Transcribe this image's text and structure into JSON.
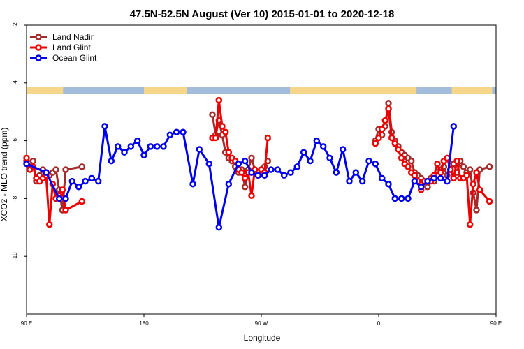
{
  "chart_data": {
    "type": "line",
    "title": "47.5N-52.5N August (Ver 10)   2015-01-01 to 2020-12-18",
    "xlabel": "Longitude",
    "ylabel": "XCO2 - MLO trend (ppm)",
    "xlim": [
      90,
      450
    ],
    "ylim": [
      -12,
      -2
    ],
    "x_ticks": [
      {
        "value": 90,
        "label": "90 E"
      },
      {
        "value": 180,
        "label": "180"
      },
      {
        "value": 270,
        "label": "90 W"
      },
      {
        "value": 360,
        "label": "0"
      },
      {
        "value": 450,
        "label": "90 E"
      },
      {
        "value": 540,
        "label": "180"
      }
    ],
    "y_ticks": [
      {
        "value": -2,
        "label": "-2"
      },
      {
        "value": -4,
        "label": "-4"
      },
      {
        "value": -6,
        "label": "-6"
      },
      {
        "value": -8,
        "label": "-8"
      },
      {
        "value": -10,
        "label": "-10"
      }
    ],
    "legend_position": "top-left",
    "land_ocean_band": {
      "y_value": -4.25,
      "land_color": "#F5D68A",
      "ocean_color": "#A3BCDB"
    },
    "series": [
      {
        "name": "Land Nadir",
        "color": "#A52A2A",
        "segments": [
          [
            [
              90,
              -6.7
            ],
            [
              92.5,
              -6.9
            ],
            [
              95,
              -6.7
            ],
            [
              97.5,
              -7.4
            ],
            [
              100,
              -7.2
            ],
            [
              102.5,
              -7.0
            ],
            [
              105,
              -7.1
            ],
            [
              107.5,
              -7.2
            ],
            [
              110,
              -7.1
            ],
            [
              112.5,
              -7.0
            ],
            [
              115,
              -7.7
            ],
            [
              117.5,
              -8.4
            ],
            [
              120,
              -7.0
            ],
            [
              132.5,
              -6.9
            ]
          ],
          [
            [
              232.5,
              -5.1
            ],
            [
              235,
              -5.8
            ],
            [
              237.5,
              -5.3
            ],
            [
              240,
              -5.8
            ],
            [
              242.5,
              -6.4
            ],
            [
              245,
              -6.6
            ],
            [
              247.5,
              -6.7
            ],
            [
              250,
              -6.9
            ],
            [
              252.5,
              -7.1
            ],
            [
              255,
              -7.0
            ],
            [
              257.5,
              -7.6
            ],
            [
              260,
              -7.0
            ],
            [
              262.5,
              -6.6
            ],
            [
              265,
              -7.0
            ],
            [
              267.5,
              -7.2
            ],
            [
              270,
              -7.0
            ],
            [
              272.5,
              -6.9
            ],
            [
              275,
              -6.7
            ]
          ],
          [
            [
              357.5,
              -6.0
            ],
            [
              360,
              -5.6
            ],
            [
              362.5,
              -5.8
            ],
            [
              365,
              -5.5
            ],
            [
              367.5,
              -4.7
            ],
            [
              370,
              -5.7
            ],
            [
              372.5,
              -6.0
            ],
            [
              375,
              -6.2
            ],
            [
              377.5,
              -6.4
            ],
            [
              380,
              -6.5
            ],
            [
              382.5,
              -6.6
            ],
            [
              385,
              -6.7
            ],
            [
              387.5,
              -7.1
            ],
            [
              390,
              -7.2
            ],
            [
              392.5,
              -7.3
            ],
            [
              395,
              -7.4
            ],
            [
              397.5,
              -7.6
            ],
            [
              400,
              -7.3
            ],
            [
              402.5,
              -7.4
            ],
            [
              405,
              -7.2
            ],
            [
              407.5,
              -7.0
            ],
            [
              410,
              -6.9
            ],
            [
              412.5,
              -7.2
            ],
            [
              415,
              -7.0
            ],
            [
              417.5,
              -6.8
            ],
            [
              420,
              -7.1
            ],
            [
              422.5,
              -6.7
            ],
            [
              425,
              -6.9
            ],
            [
              427.5,
              -7.1
            ],
            [
              430,
              -7.0
            ],
            [
              432.5,
              -7.8
            ],
            [
              435,
              -8.4
            ],
            [
              437.5,
              -7.0
            ],
            [
              445,
              -6.9
            ]
          ]
        ]
      },
      {
        "name": "Land Glint",
        "color": "#EE0000",
        "segments": [
          [
            [
              90,
              -6.6
            ],
            [
              92.5,
              -7.0
            ],
            [
              95,
              -6.9
            ],
            [
              97.5,
              -7.3
            ],
            [
              100,
              -7.4
            ],
            [
              102.5,
              -7.3
            ],
            [
              105,
              -7.2
            ],
            [
              107.5,
              -8.9
            ],
            [
              110,
              -7.5
            ],
            [
              112.5,
              -8.0
            ],
            [
              115,
              -7.9
            ],
            [
              117.5,
              -7.7
            ],
            [
              120,
              -8.4
            ],
            [
              132.5,
              -8.1
            ]
          ],
          [
            [
              232.5,
              -5.9
            ],
            [
              235,
              -5.9
            ],
            [
              237.5,
              -4.6
            ],
            [
              240,
              -5.5
            ],
            [
              242.5,
              -5.7
            ],
            [
              245,
              -6.4
            ],
            [
              247.5,
              -6.6
            ],
            [
              250,
              -6.7
            ],
            [
              252.5,
              -7.0
            ],
            [
              255,
              -7.1
            ],
            [
              257.5,
              -7.3
            ],
            [
              260,
              -7.1
            ],
            [
              262.5,
              -7.9
            ],
            [
              265,
              -7.0
            ],
            [
              267.5,
              -7.2
            ],
            [
              270,
              -7.0
            ],
            [
              272.5,
              -7.1
            ],
            [
              275,
              -5.9
            ]
          ],
          [
            [
              357.5,
              -6.1
            ],
            [
              360,
              -5.9
            ],
            [
              362.5,
              -5.6
            ],
            [
              365,
              -5.3
            ],
            [
              367.5,
              -4.9
            ],
            [
              370,
              -5.9
            ],
            [
              372.5,
              -6.1
            ],
            [
              375,
              -6.3
            ],
            [
              377.5,
              -6.6
            ],
            [
              380,
              -6.8
            ],
            [
              382.5,
              -6.9
            ],
            [
              385,
              -7.1
            ],
            [
              387.5,
              -7.2
            ],
            [
              390,
              -7.4
            ],
            [
              392.5,
              -7.7
            ],
            [
              395,
              -7.4
            ],
            [
              397.5,
              -7.4
            ],
            [
              400,
              -7.4
            ],
            [
              402.5,
              -7.2
            ],
            [
              405,
              -6.8
            ],
            [
              407.5,
              -7.1
            ],
            [
              410,
              -6.7
            ],
            [
              412.5,
              -6.6
            ],
            [
              415,
              -7.0
            ],
            [
              417.5,
              -7.3
            ],
            [
              420,
              -6.7
            ],
            [
              422.5,
              -7.3
            ],
            [
              425,
              -7.3
            ],
            [
              427.5,
              -7.2
            ],
            [
              430,
              -8.9
            ],
            [
              432.5,
              -7.5
            ],
            [
              435,
              -7.1
            ],
            [
              437.5,
              -7.7
            ],
            [
              445,
              -8.1
            ]
          ]
        ]
      },
      {
        "name": "Ocean Glint",
        "color": "#0000EE",
        "segments": [
          [
            [
              90,
              -6.8
            ],
            [
              105,
              -7.1
            ],
            [
              115,
              -8.0
            ],
            [
              120,
              -8.0
            ],
            [
              125,
              -7.4
            ],
            [
              130,
              -7.6
            ],
            [
              135,
              -7.4
            ],
            [
              140,
              -7.3
            ],
            [
              145,
              -7.4
            ],
            [
              150,
              -5.5
            ],
            [
              155,
              -6.7
            ],
            [
              160,
              -6.2
            ],
            [
              165,
              -6.4
            ],
            [
              170,
              -6.2
            ],
            [
              175,
              -6.0
            ],
            [
              180,
              -6.5
            ],
            [
              185,
              -6.2
            ],
            [
              190,
              -6.2
            ],
            [
              195,
              -6.2
            ],
            [
              200,
              -5.8
            ],
            [
              205,
              -5.7
            ],
            [
              210,
              -5.7
            ],
            [
              217.5,
              -7.5
            ],
            [
              222.5,
              -6.3
            ],
            [
              230,
              -6.8
            ],
            [
              237.5,
              -9.0
            ],
            [
              245,
              -7.5
            ],
            [
              252.5,
              -6.8
            ],
            [
              257.5,
              -6.7
            ],
            [
              262.5,
              -7.1
            ],
            [
              267.5,
              -7.2
            ],
            [
              272.5,
              -7.2
            ],
            [
              277.5,
              -7.0
            ],
            [
              282.5,
              -7.0
            ],
            [
              287.5,
              -7.2
            ],
            [
              292.5,
              -7.1
            ],
            [
              297.5,
              -6.9
            ],
            [
              302.5,
              -6.4
            ],
            [
              307.5,
              -6.7
            ],
            [
              312.5,
              -6.0
            ],
            [
              317.5,
              -6.2
            ],
            [
              322.5,
              -6.6
            ],
            [
              327.5,
              -7.1
            ],
            [
              332.5,
              -6.3
            ],
            [
              337.5,
              -7.4
            ],
            [
              342.5,
              -7.1
            ],
            [
              347.5,
              -7.4
            ],
            [
              352.5,
              -6.7
            ],
            [
              357.5,
              -6.8
            ],
            [
              362.5,
              -7.3
            ],
            [
              367.5,
              -7.5
            ],
            [
              372.5,
              -8.0
            ],
            [
              377.5,
              -8.0
            ],
            [
              382.5,
              -8.0
            ],
            [
              387.5,
              -7.4
            ],
            [
              392.5,
              -7.6
            ],
            [
              397.5,
              -7.4
            ],
            [
              402.5,
              -7.3
            ],
            [
              407.5,
              -7.3
            ],
            [
              412.5,
              -7.4
            ],
            [
              417.5,
              -5.5
            ]
          ]
        ]
      }
    ]
  }
}
